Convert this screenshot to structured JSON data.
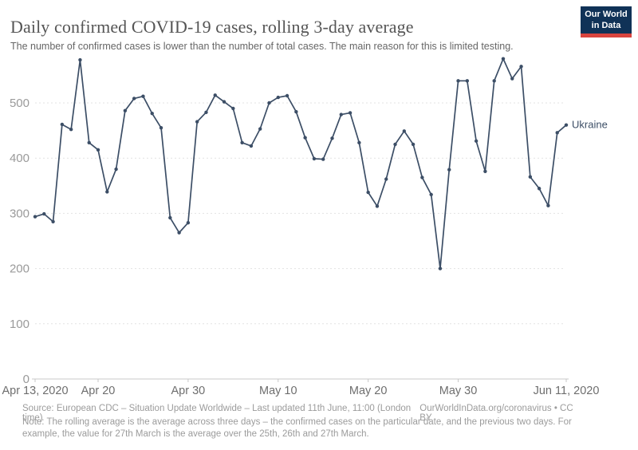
{
  "header": {
    "title": "Daily confirmed COVID-19 cases, rolling 3-day average",
    "subtitle": "The number of confirmed cases is lower than the number of total cases. The main reason for this is limited testing.",
    "logo": {
      "line1": "Our World",
      "line2": "in Data"
    }
  },
  "colors": {
    "series_line": "#3C4E66",
    "logo_bg": "#103257",
    "logo_stripe": "#D8443E",
    "gridline": "#e3e3e3",
    "axis_line": "#c8c8c8",
    "y_tick_label": "#9a9a9a",
    "x_tick_label": "#6e6e6e"
  },
  "chart_data": {
    "type": "line",
    "title": "Daily confirmed COVID-19 cases, rolling 3-day average",
    "xlabel": "",
    "ylabel": "",
    "ylim": [
      0,
      600
    ],
    "grid": "horizontal-dashed",
    "legend": "series label at line end",
    "x": [
      "Apr 13",
      "Apr 14",
      "Apr 15",
      "Apr 16",
      "Apr 17",
      "Apr 18",
      "Apr 19",
      "Apr 20",
      "Apr 21",
      "Apr 22",
      "Apr 23",
      "Apr 24",
      "Apr 25",
      "Apr 26",
      "Apr 27",
      "Apr 28",
      "Apr 29",
      "Apr 30",
      "May 1",
      "May 2",
      "May 3",
      "May 4",
      "May 5",
      "May 6",
      "May 7",
      "May 8",
      "May 9",
      "May 10",
      "May 11",
      "May 12",
      "May 13",
      "May 14",
      "May 15",
      "May 16",
      "May 17",
      "May 18",
      "May 19",
      "May 20",
      "May 21",
      "May 22",
      "May 23",
      "May 24",
      "May 25",
      "May 26",
      "May 27",
      "May 28",
      "May 29",
      "May 30",
      "May 31",
      "Jun 1",
      "Jun 2",
      "Jun 3",
      "Jun 4",
      "Jun 5",
      "Jun 6",
      "Jun 7",
      "Jun 8",
      "Jun 9",
      "Jun 10",
      "Jun 11"
    ],
    "series": [
      {
        "name": "Ukraine",
        "color": "#3C4E66",
        "values": [
          294,
          299,
          285,
          461,
          452,
          578,
          428,
          415,
          339,
          380,
          486,
          508,
          512,
          481,
          455,
          292,
          265,
          283,
          466,
          483,
          514,
          502,
          490,
          428,
          422,
          453,
          500,
          510,
          513,
          484,
          437,
          399,
          398,
          436,
          479,
          482,
          428,
          338,
          313,
          362,
          425,
          449,
          425,
          365,
          334,
          200,
          379,
          540,
          540,
          431,
          376,
          540,
          580,
          544,
          566,
          366,
          345,
          314,
          446,
          460
        ]
      }
    ],
    "x_ticks": [
      {
        "index": 0,
        "label": "Apr 13, 2020"
      },
      {
        "index": 7,
        "label": "Apr 20"
      },
      {
        "index": 17,
        "label": "Apr 30"
      },
      {
        "index": 27,
        "label": "May 10"
      },
      {
        "index": 37,
        "label": "May 20"
      },
      {
        "index": 47,
        "label": "May 30"
      },
      {
        "index": 59,
        "label": "Jun 11, 2020"
      }
    ],
    "y_ticks": [
      0,
      100,
      200,
      300,
      400,
      500
    ]
  },
  "footer": {
    "source": "Source: European CDC – Situation Update Worldwide – Last updated 11th June, 11:00 (London time)",
    "url": "OurWorldInData.org/coronavirus • CC BY",
    "note": "Note: The rolling average is the average across three days – the confirmed cases on the particular date, and the previous two days. For example, the value for 27th March is the average over the 25th, 26th and 27th March."
  }
}
